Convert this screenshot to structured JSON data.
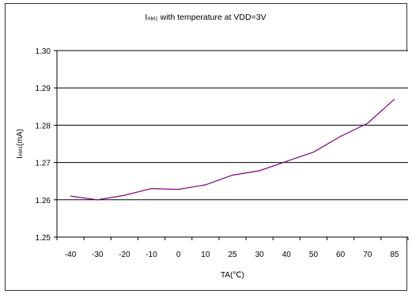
{
  "chart_data": {
    "type": "line",
    "title_prefix": "I",
    "title_sub": "AM1",
    "title_rest": " with temperature at VDD=3V",
    "ylabel_prefix": "I",
    "ylabel_sub": "AM1",
    "ylabel_rest": "(mA)",
    "xlabel": "TA(℃)",
    "categories": [
      "-40",
      "-30",
      "-20",
      "-10",
      "0",
      "10",
      "25",
      "30",
      "40",
      "50",
      "60",
      "70",
      "85"
    ],
    "yticks": [
      "1.25",
      "1.26",
      "1.27",
      "1.28",
      "1.29",
      "1.30"
    ],
    "ylim": [
      1.25,
      1.3
    ],
    "grid": "horizontal",
    "series": [
      {
        "values": [
          1.261,
          1.26,
          1.2612,
          1.263,
          1.2628,
          1.264,
          1.2666,
          1.2678,
          1.2703,
          1.2728,
          1.277,
          1.2805,
          1.287
        ],
        "color": "#800080"
      }
    ]
  }
}
